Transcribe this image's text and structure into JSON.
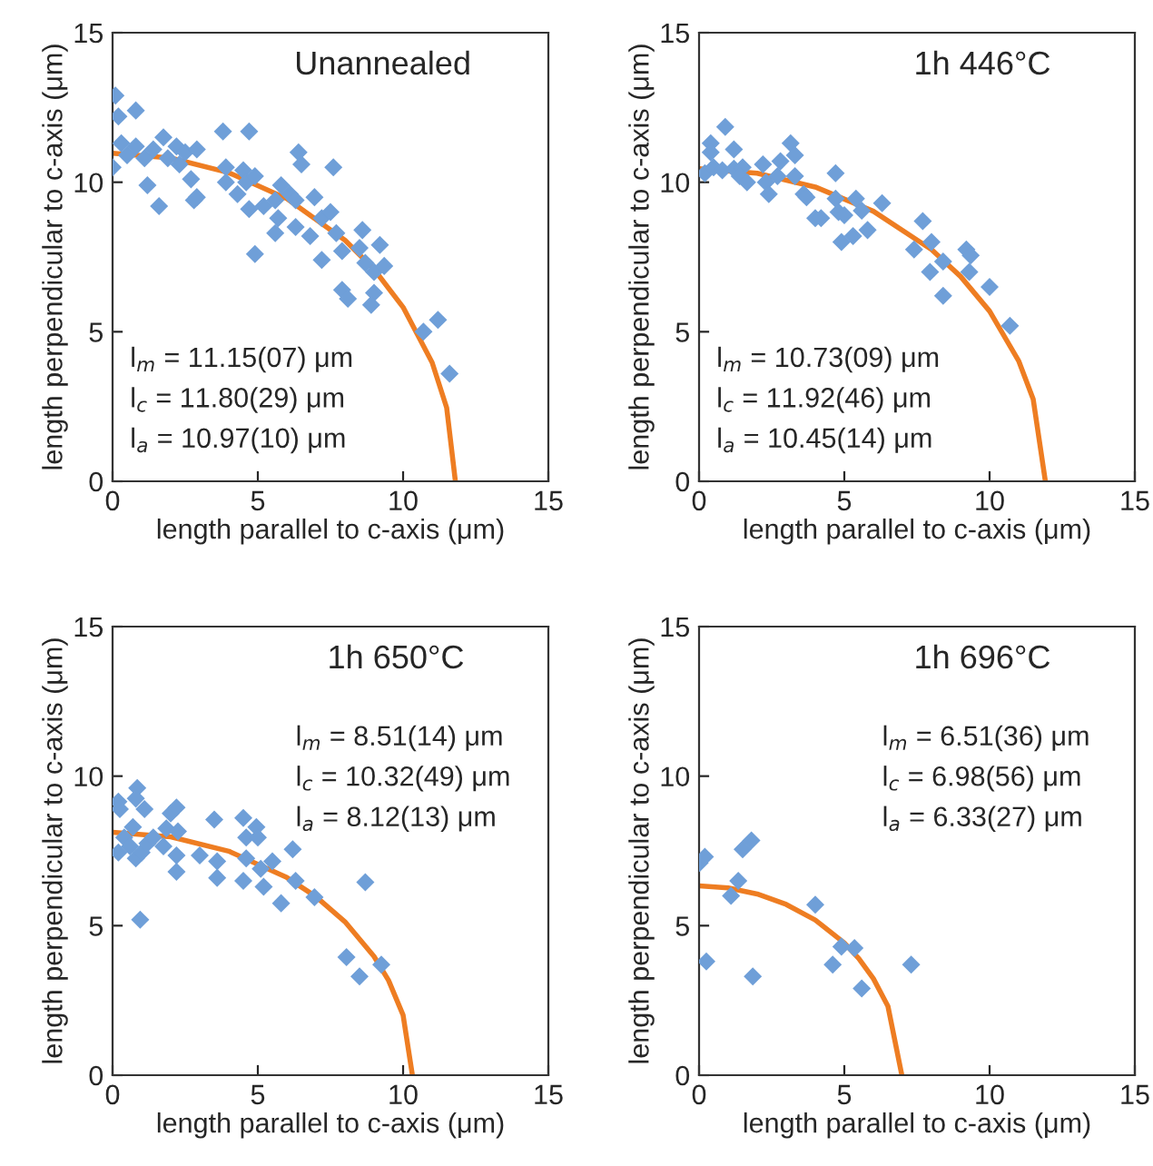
{
  "chart_data": [
    {
      "type": "scatter",
      "title": "Unannealed",
      "xlabel": "length parallel to c-axis (μm)",
      "ylabel": "length perpendicular to c-axis (μm)",
      "xlim": [
        0,
        15
      ],
      "ylim": [
        0,
        15
      ],
      "xticks": [
        0,
        5,
        10,
        15
      ],
      "yticks": [
        0,
        5,
        10,
        15
      ],
      "annotations": [
        "l$_{m}$ = 11.15(07) μm",
        "l$_{c}$ = 11.80(29) μm",
        "l$_{a}$ = 10.97(10) μm"
      ],
      "series": [
        {
          "marker": "diamond",
          "color": "#6f9fd8",
          "x": [
            0.1,
            0.2,
            0.8,
            0.3,
            0,
            0.5,
            0.8,
            1.1,
            1.4,
            1.75,
            1.9,
            2.2,
            2.3,
            2.5,
            2.9,
            1.2,
            1.6,
            2.7,
            2.9,
            2.8,
            3.8,
            4.7,
            3.9,
            4.5,
            3.9,
            4.6,
            4.9,
            4.3,
            4.7,
            5.2,
            4.9,
            5.8,
            5.6,
            5.7,
            5.6,
            6.1,
            6.3,
            6.4,
            6.5,
            6.3,
            6.8,
            6.95,
            7.2,
            7.6,
            7.5,
            7.7,
            7.2,
            7.9,
            8.6,
            8.5,
            9.2,
            8.7,
            9.0,
            9.35,
            7.9,
            8.1,
            9.0,
            8.9,
            10.7,
            11.2,
            11.6
          ],
          "values": [
            12.9,
            12.2,
            12.4,
            11.3,
            10.5,
            10.9,
            11.2,
            10.8,
            11.1,
            11.5,
            10.8,
            11.2,
            10.6,
            11.0,
            11.1,
            9.9,
            9.2,
            10.1,
            9.5,
            9.4,
            11.7,
            11.7,
            10.5,
            10.4,
            10.0,
            10.0,
            10.2,
            9.6,
            9.1,
            9.2,
            7.6,
            9.9,
            9.4,
            8.8,
            8.3,
            9.6,
            9.4,
            11.0,
            10.6,
            8.5,
            8.2,
            9.5,
            8.8,
            10.5,
            9.0,
            8.3,
            7.4,
            7.7,
            8.4,
            7.8,
            7.9,
            7.3,
            7.0,
            7.2,
            6.4,
            6.1,
            6.3,
            5.9,
            5.0,
            5.4,
            3.6
          ]
        },
        {
          "type": "line",
          "marker": "none",
          "color": "#ee7d22",
          "x": [
            0,
            2,
            4,
            6,
            8,
            9,
            10,
            11,
            11.5,
            11.8
          ],
          "values": [
            10.97,
            10.81,
            10.32,
            9.45,
            8.06,
            7.09,
            5.82,
            3.97,
            2.46,
            0
          ]
        }
      ]
    },
    {
      "type": "scatter",
      "title": "1h 446°C",
      "xlabel": "length parallel to c-axis (μm)",
      "ylabel": "length perpendicular to c-axis (μm)",
      "xlim": [
        0,
        15
      ],
      "ylim": [
        0,
        15
      ],
      "xticks": [
        0,
        5,
        10,
        15
      ],
      "yticks": [
        0,
        5,
        10,
        15
      ],
      "annotations": [
        "l$_{m}$ = 10.73(09) μm",
        "l$_{c}$ = 11.92(46) μm",
        "l$_{a}$ = 10.45(14) μm"
      ],
      "series": [
        {
          "marker": "diamond",
          "color": "#6f9fd8",
          "x": [
            0.9,
            0.4,
            0.4,
            1.2,
            0.2,
            0.5,
            0.8,
            1.2,
            1.5,
            1.4,
            1.65,
            2.2,
            2.3,
            2.4,
            2.8,
            2.7,
            3.15,
            3.3,
            3.3,
            3.6,
            3.7,
            4.0,
            4.2,
            4.7,
            4.7,
            4.8,
            5.0,
            4.9,
            5.3,
            5.4,
            5.6,
            5.8,
            6.3,
            7.4,
            7.7,
            8.0,
            7.95,
            8.4,
            8.4,
            9.2,
            9.35,
            9.3,
            10.0,
            10.7
          ],
          "values": [
            11.85,
            11.3,
            11.0,
            11.1,
            10.3,
            10.5,
            10.4,
            10.45,
            10.5,
            10.2,
            10.0,
            10.6,
            10.0,
            9.6,
            10.7,
            10.2,
            11.3,
            10.9,
            10.2,
            9.6,
            9.5,
            8.8,
            8.8,
            10.3,
            9.45,
            9.0,
            8.9,
            8.0,
            8.2,
            9.45,
            9.05,
            8.4,
            9.3,
            7.75,
            8.7,
            8.0,
            7.0,
            7.35,
            6.2,
            7.75,
            7.55,
            7.0,
            6.5,
            5.2
          ]
        },
        {
          "type": "line",
          "marker": "none",
          "color": "#ee7d22",
          "x": [
            0,
            2,
            4,
            6,
            8,
            9,
            10,
            11,
            11.5,
            11.92
          ],
          "values": [
            10.45,
            10.3,
            9.84,
            9.03,
            7.75,
            6.85,
            5.69,
            4.03,
            2.75,
            0
          ]
        }
      ]
    },
    {
      "type": "scatter",
      "title": "1h 650°C",
      "xlabel": "length parallel to c-axis (μm)",
      "ylabel": "length perpendicular to c-axis (μm)",
      "xlim": [
        0,
        15
      ],
      "ylim": [
        0,
        15
      ],
      "xticks": [
        0,
        5,
        10,
        15
      ],
      "yticks": [
        0,
        5,
        10,
        15
      ],
      "annotations": [
        "l$_{m}$ = 8.51(14) μm",
        "l$_{c}$ = 10.32(49) μm",
        "l$_{a}$ = 8.12(13) μm"
      ],
      "series": [
        {
          "marker": "diamond",
          "color": "#6f9fd8",
          "x": [
            0.2,
            0.25,
            0.85,
            0.8,
            1.1,
            0.7,
            0.4,
            0.2,
            0.6,
            0.8,
            1.0,
            1.2,
            1.4,
            1.75,
            1.85,
            2.0,
            2.2,
            2.25,
            2.2,
            2.2,
            0.95,
            3.0,
            3.5,
            3.6,
            3.6,
            4.5,
            4.6,
            4.95,
            5.0,
            4.6,
            4.5,
            5.1,
            5.2,
            5.5,
            6.2,
            6.3,
            5.8,
            6.95,
            8.7,
            8.05,
            8.5,
            9.25
          ],
          "values": [
            9.15,
            8.9,
            9.6,
            9.25,
            8.9,
            8.3,
            7.95,
            7.45,
            7.65,
            7.25,
            7.45,
            7.75,
            7.95,
            7.65,
            8.25,
            8.75,
            8.95,
            8.15,
            7.35,
            6.8,
            5.2,
            7.35,
            8.55,
            7.15,
            6.6,
            8.6,
            7.95,
            8.3,
            7.95,
            7.25,
            6.5,
            6.9,
            6.3,
            7.15,
            7.55,
            6.5,
            5.75,
            5.95,
            6.45,
            3.95,
            3.3,
            3.7
          ]
        },
        {
          "type": "line",
          "marker": "none",
          "color": "#ee7d22",
          "x": [
            0,
            2,
            4,
            6,
            7,
            8,
            9,
            9.5,
            10,
            10.32
          ],
          "values": [
            8.12,
            7.97,
            7.49,
            6.61,
            5.97,
            5.13,
            3.97,
            3.17,
            2.01,
            0
          ]
        }
      ]
    },
    {
      "type": "scatter",
      "title": "1h 696°C",
      "xlabel": "length parallel to c-axis (μm)",
      "ylabel": "length perpendicular to c-axis (μm)",
      "xlim": [
        0,
        15
      ],
      "ylim": [
        0,
        15
      ],
      "xticks": [
        0,
        5,
        10,
        15
      ],
      "yticks": [
        0,
        5,
        10,
        15
      ],
      "annotations": [
        "l$_{m}$ = 6.51(36) μm",
        "l$_{c}$ = 6.98(56) μm",
        "l$_{a}$ = 6.33(27) μm"
      ],
      "series": [
        {
          "marker": "diamond",
          "color": "#6f9fd8",
          "x": [
            0.02,
            0.2,
            0.25,
            1.1,
            1.35,
            1.5,
            1.8,
            1.85,
            4.0,
            4.6,
            4.9,
            5.35,
            5.6,
            7.3
          ],
          "values": [
            7.1,
            7.3,
            3.8,
            6.0,
            6.5,
            7.55,
            7.85,
            3.3,
            5.7,
            3.7,
            4.3,
            4.25,
            2.9,
            3.7
          ]
        },
        {
          "type": "line",
          "marker": "none",
          "color": "#ee7d22",
          "x": [
            0,
            1,
            2,
            3,
            4,
            5,
            5.5,
            6,
            6.5,
            6.98
          ],
          "values": [
            6.33,
            6.26,
            6.06,
            5.71,
            5.19,
            4.42,
            3.9,
            3.23,
            2.31,
            0
          ]
        }
      ]
    }
  ]
}
